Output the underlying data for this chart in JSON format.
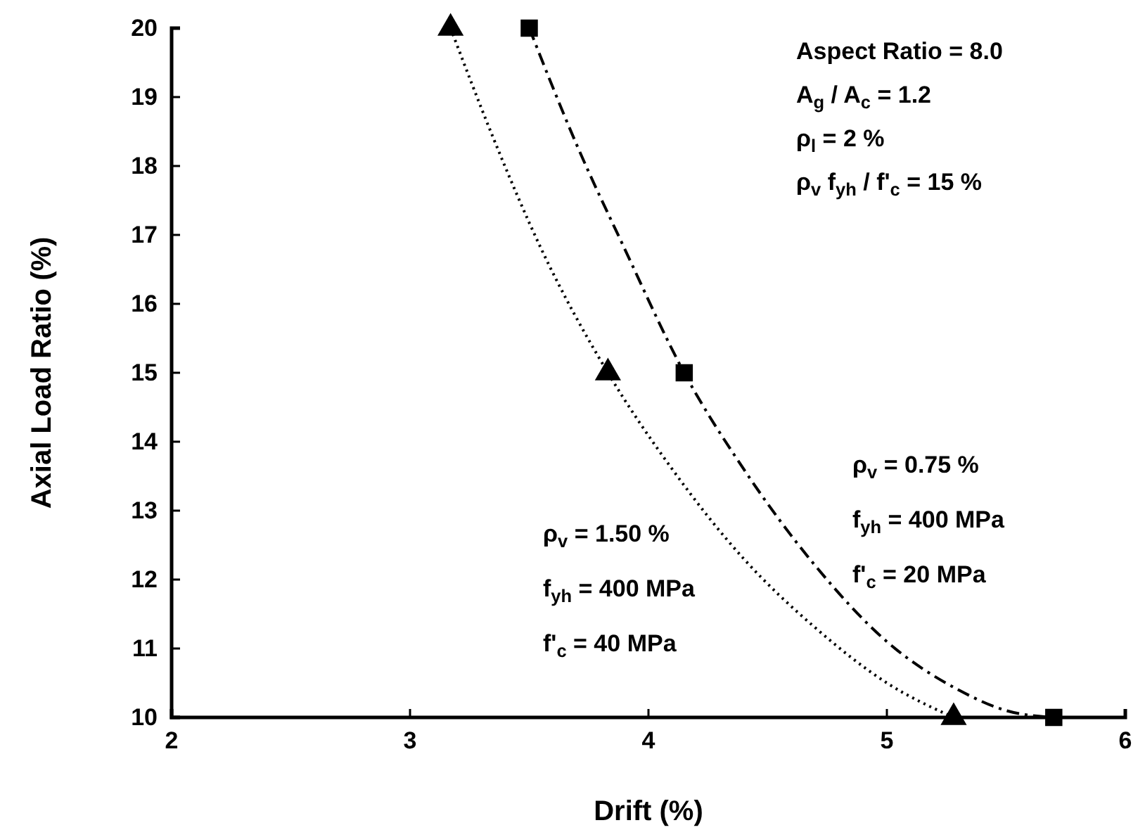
{
  "chart_data": {
    "type": "line",
    "xlabel": "Drift (%)",
    "ylabel": "Axial Load Ratio (%)",
    "xlim": [
      2,
      6
    ],
    "xticks": [
      2,
      3,
      4,
      5,
      6
    ],
    "ylim": [
      10,
      20
    ],
    "yticks": [
      10,
      11,
      12,
      13,
      14,
      15,
      16,
      17,
      18,
      19,
      20
    ],
    "series": [
      {
        "color": "#000000",
        "line_style": "dotted",
        "marker": "none",
        "x": [
          3.17,
          3.35,
          3.55,
          3.83,
          4.1,
          4.4,
          4.7,
          5.0,
          5.28
        ],
        "values": [
          20,
          18.4,
          16.8,
          15,
          13.6,
          12.3,
          11.3,
          10.5,
          10
        ]
      },
      {
        "color": "#000000",
        "line_style": "dashdot",
        "marker": "none",
        "x": [
          3.5,
          3.7,
          3.9,
          4.15,
          4.4,
          4.7,
          5.0,
          5.3,
          5.5,
          5.7
        ],
        "values": [
          20,
          18.3,
          16.8,
          15,
          13.6,
          12.2,
          11.1,
          10.4,
          10.1,
          10
        ]
      },
      {
        "type": "scatter",
        "color": "#000000",
        "marker": "triangle",
        "x": [
          3.17,
          3.83,
          5.28
        ],
        "values": [
          20,
          15,
          10
        ]
      },
      {
        "type": "scatter",
        "color": "#000000",
        "marker": "square",
        "x": [
          3.5,
          4.15,
          5.7
        ],
        "values": [
          20,
          15,
          10
        ]
      }
    ],
    "annotations": [
      "Aspect Ratio = 8.0",
      "A$_{g}$ / A$_{c}$ = 1.2",
      "ρ$_{l}$ = 2 %",
      "ρ$_{v}$ f$_{yh}$ / f'$_{c}$ = 15 %",
      "ρ$_{v}$ = 0.75 %",
      "f$_{yh}$ = 400 MPa",
      "f'$_{c}$ = 20 MPa",
      "ρ$_{v}$ = 1.50 %",
      "f$_{yh}$ = 400 MPa",
      "f'$_{c}$ = 40 MPa"
    ]
  }
}
